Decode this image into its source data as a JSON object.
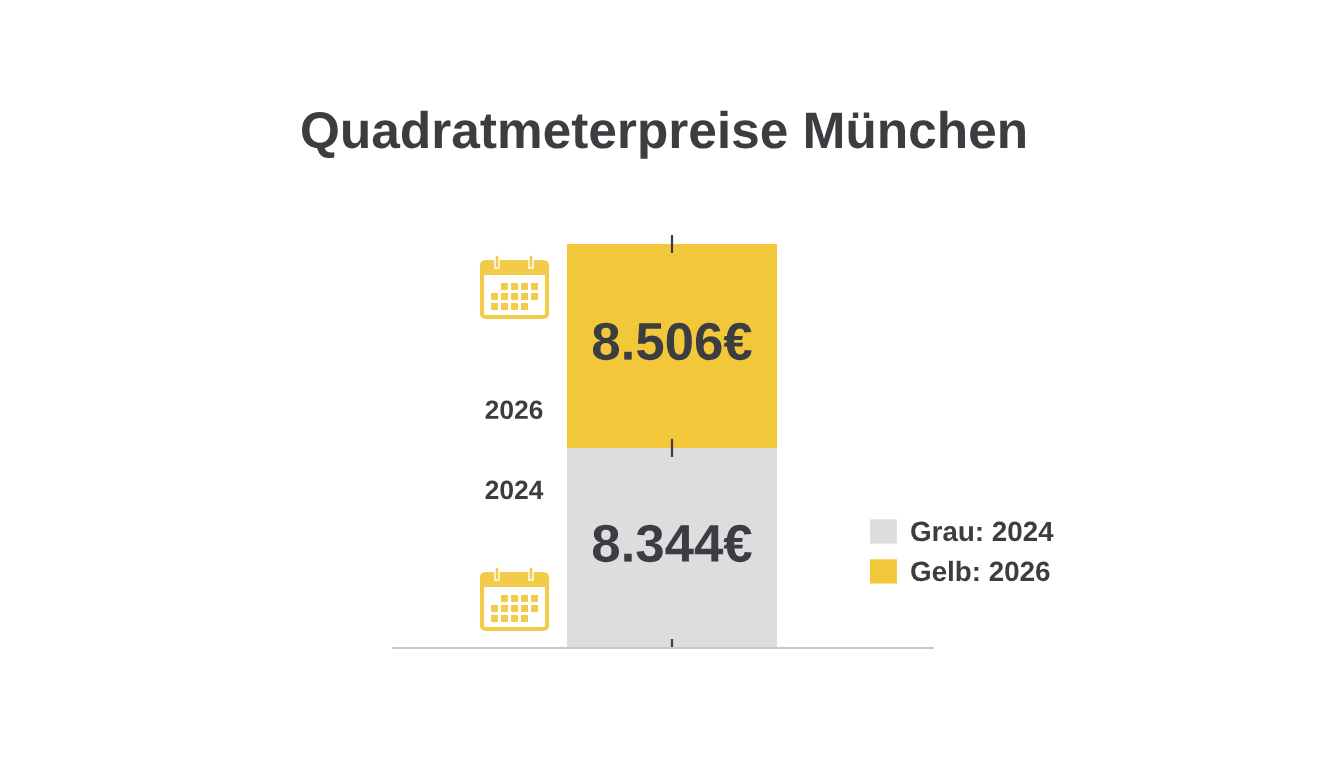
{
  "chart_data": {
    "type": "bar",
    "title": "Quadratmeterpreise München",
    "categories": [
      null
    ],
    "stacked": true,
    "series": [
      {
        "name": "Grau: 2024",
        "color": "#dcddde",
        "values": [
          8344
        ],
        "value_labels": [
          "8.344€"
        ]
      },
      {
        "name": "Gelb: 2026",
        "color": "#f2c83a",
        "values": [
          8506
        ],
        "value_labels": [
          "8.506€"
        ]
      }
    ],
    "annotations": [
      "2026",
      "2024"
    ],
    "legend": "right",
    "grid": false
  }
}
